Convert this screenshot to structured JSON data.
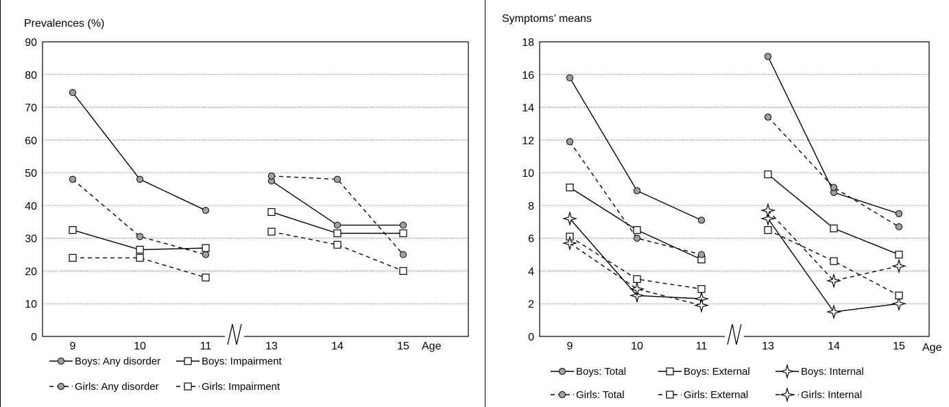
{
  "chart_data": [
    {
      "type": "line",
      "title": "Prevalences (%)",
      "xlabel": "Age",
      "ylabel": "",
      "ylim": [
        0,
        90
      ],
      "yticks": [
        0,
        10,
        20,
        30,
        40,
        50,
        60,
        70,
        80,
        90
      ],
      "categories": [
        "9",
        "10",
        "11",
        "13",
        "14",
        "15"
      ],
      "axis_break": "between 11 and 13",
      "grid": "horizontal dotted",
      "legend_position": "bottom",
      "series": [
        {
          "name": "Boys: Any disorder",
          "marker": "circle",
          "dash": "solid",
          "values": [
            74.5,
            48,
            38.5,
            47.5,
            34,
            34
          ]
        },
        {
          "name": "Boys: Impairment",
          "marker": "square",
          "dash": "solid",
          "values": [
            32.5,
            26.5,
            27,
            38,
            31.5,
            31.5
          ]
        },
        {
          "name": "Girls: Any disorder",
          "marker": "circle",
          "dash": "dashed",
          "values": [
            48,
            30.5,
            25,
            49,
            48,
            25
          ]
        },
        {
          "name": "Girls: Impairment",
          "marker": "square",
          "dash": "dashed",
          "values": [
            24,
            24,
            18,
            32,
            28,
            20
          ]
        }
      ]
    },
    {
      "type": "line",
      "title": "Symptoms’ means",
      "xlabel": "Age",
      "ylabel": "",
      "ylim": [
        0,
        18
      ],
      "yticks": [
        0,
        2,
        4,
        6,
        8,
        10,
        12,
        14,
        16,
        18
      ],
      "categories": [
        "9",
        "10",
        "11",
        "13",
        "14",
        "15"
      ],
      "axis_break": "between 11 and 13",
      "grid": "horizontal dotted",
      "legend_position": "bottom",
      "series": [
        {
          "name": "Boys: Total",
          "marker": "circle",
          "dash": "solid",
          "values": [
            15.8,
            8.9,
            7.1,
            17.1,
            8.8,
            7.5
          ]
        },
        {
          "name": "Boys: External",
          "marker": "square",
          "dash": "solid",
          "values": [
            9.1,
            6.5,
            4.7,
            9.9,
            6.6,
            5.0
          ]
        },
        {
          "name": "Boys: Internal",
          "marker": "star",
          "dash": "solid",
          "values": [
            7.2,
            2.5,
            2.3,
            7.2,
            1.5,
            2.0
          ]
        },
        {
          "name": "Girls: Total",
          "marker": "circle",
          "dash": "dashed",
          "values": [
            11.9,
            6.0,
            5.0,
            13.4,
            9.1,
            6.7
          ]
        },
        {
          "name": "Girls: External",
          "marker": "square",
          "dash": "dashed",
          "values": [
            6.1,
            3.5,
            2.9,
            6.5,
            4.6,
            2.5
          ]
        },
        {
          "name": "Girls: Internal",
          "marker": "star",
          "dash": "dashed",
          "values": [
            5.7,
            2.9,
            1.9,
            7.7,
            3.4,
            4.3
          ]
        }
      ]
    }
  ],
  "style": {
    "marker_fill": "#a0a0a0",
    "line": "#000000",
    "grid": "#555555",
    "background": "#ffffff"
  }
}
